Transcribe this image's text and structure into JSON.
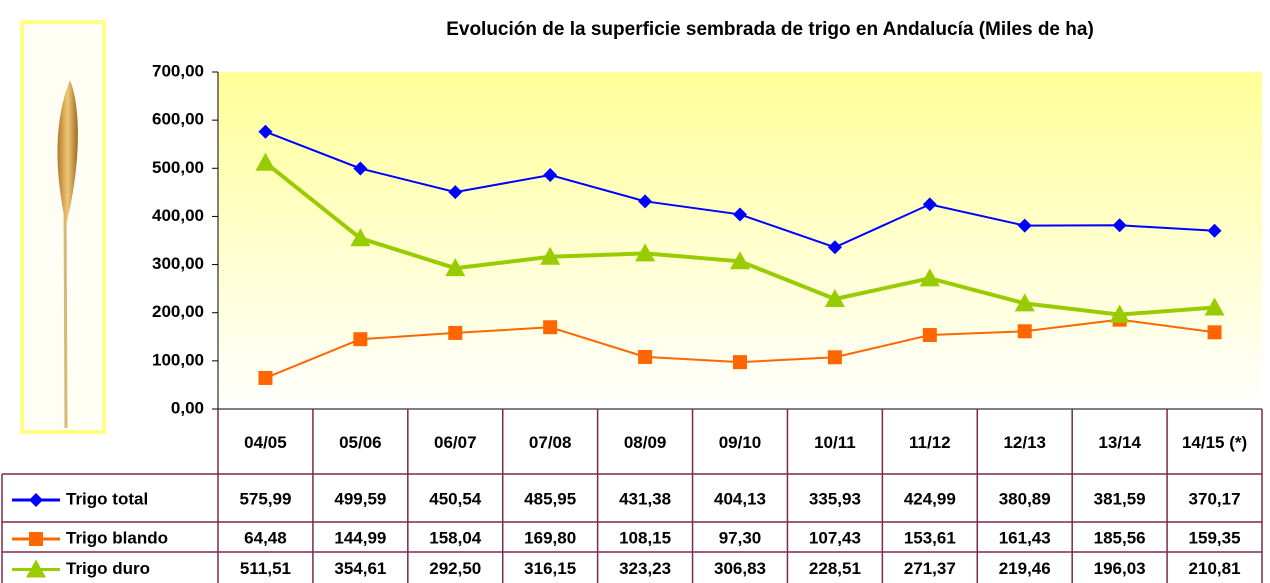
{
  "chart_data": {
    "type": "line",
    "title": "Evolución de la superficie sembrada de trigo en Andalucía (Miles de ha)",
    "categories": [
      "04/05",
      "05/06",
      "06/07",
      "07/08",
      "08/09",
      "09/10",
      "10/11",
      "11/12",
      "12/13",
      "13/14",
      "14/15 (*)"
    ],
    "series": [
      {
        "name": "Trigo total",
        "color": "#0000ff",
        "marker": "diamond",
        "values": [
          575.99,
          499.59,
          450.54,
          485.95,
          431.38,
          404.13,
          335.93,
          424.99,
          380.89,
          381.59,
          370.17
        ],
        "value_labels": [
          "575,99",
          "499,59",
          "450,54",
          "485,95",
          "431,38",
          "404,13",
          "335,93",
          "424,99",
          "380,89",
          "381,59",
          "370,17"
        ]
      },
      {
        "name": "Trigo blando",
        "color": "#ff6600",
        "marker": "square",
        "values": [
          64.48,
          144.99,
          158.04,
          169.8,
          108.15,
          97.3,
          107.43,
          153.61,
          161.43,
          185.56,
          159.35
        ],
        "value_labels": [
          "64,48",
          "144,99",
          "158,04",
          "169,80",
          "108,15",
          "97,30",
          "107,43",
          "153,61",
          "161,43",
          "185,56",
          "159,35"
        ]
      },
      {
        "name": "Trigo duro",
        "color": "#99cc00",
        "marker": "triangle",
        "values": [
          511.51,
          354.61,
          292.5,
          316.15,
          323.23,
          306.83,
          228.51,
          271.37,
          219.46,
          196.03,
          210.81
        ],
        "value_labels": [
          "511,51",
          "354,61",
          "292,50",
          "316,15",
          "323,23",
          "306,83",
          "228,51",
          "271,37",
          "219,46",
          "196,03",
          "210,81"
        ]
      }
    ],
    "ylim": [
      0,
      700
    ],
    "yticks": [
      {
        "value": 0,
        "label": "0,00"
      },
      {
        "value": 100,
        "label": "100,00"
      },
      {
        "value": 200,
        "label": "200,00"
      },
      {
        "value": 300,
        "label": "300,00"
      },
      {
        "value": 400,
        "label": "400,00"
      },
      {
        "value": 500,
        "label": "500,00"
      },
      {
        "value": 600,
        "label": "600,00"
      },
      {
        "value": 700,
        "label": "700,00"
      }
    ],
    "grid": false
  }
}
